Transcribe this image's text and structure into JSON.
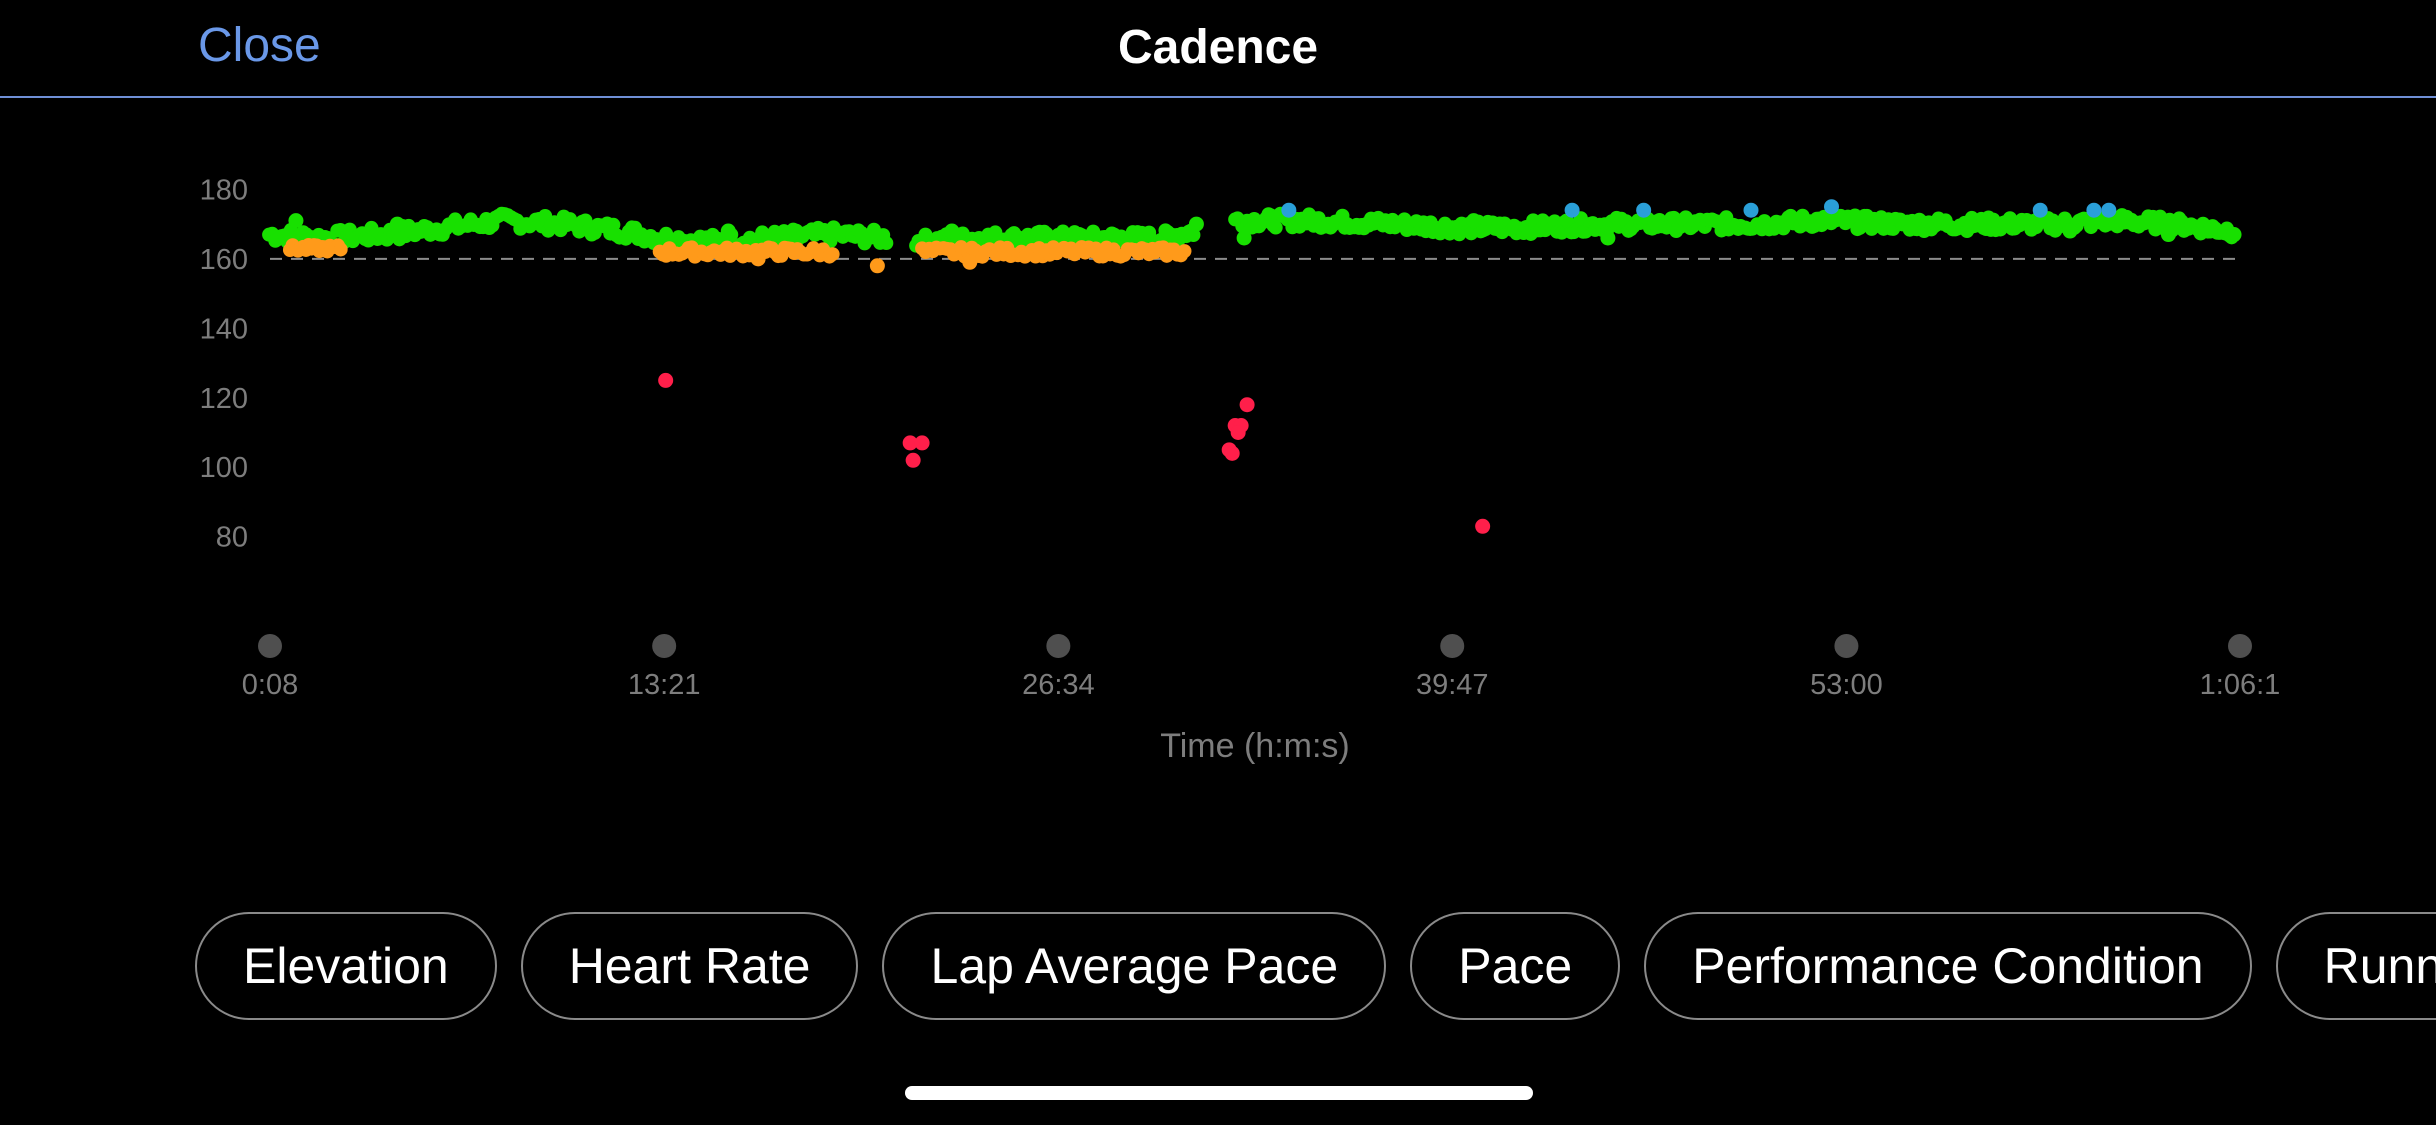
{
  "nav": {
    "close_label": "Close",
    "title": "Cadence"
  },
  "filters": [
    "Elevation",
    "Heart Rate",
    "Lap Average Pace",
    "Pace",
    "Performance Condition",
    "Running Dynamics"
  ],
  "colors": {
    "background": "#000000",
    "accent": "#6a98e8",
    "zone_purple": "#2a9fd8",
    "zone_green": "#18e000",
    "zone_orange": "#ff9a1a",
    "zone_red": "#ff1f4a",
    "axis_text": "#7d7d7d"
  },
  "chart_data": {
    "type": "scatter",
    "title": "",
    "xlabel": "Time (h:m:s)",
    "ylabel": "",
    "x_unit": "minutes",
    "xlim": [
      0.13,
      66.2
    ],
    "ylim": [
      73,
      185
    ],
    "y_ticks": [
      180,
      160,
      140,
      120,
      100,
      80
    ],
    "x_tick_labels": [
      "0:08",
      "13:21",
      "26:34",
      "39:47",
      "53:00",
      "1:06:1"
    ],
    "x_tick_values": [
      0.13,
      13.35,
      26.57,
      39.78,
      53.0,
      66.2
    ],
    "reference_line": 160,
    "grid": false,
    "series": [
      {
        "color": "#18e000",
        "segments": [
          {
            "x": [
              0.1,
              2.0,
              4.0,
              6.0,
              8.0,
              10.0,
              12.0,
              13.3,
              15.0,
              17.0,
              19.0,
              20.8
            ],
            "y": [
              167,
              166,
              167,
              169,
              171,
              170,
              168,
              166,
              165,
              166,
              167,
              166
            ],
            "n": 200,
            "jitter": 2.2
          },
          {
            "x": [
              21.8,
              24.0,
              26.0,
              28.0,
              30.0,
              31.1
            ],
            "y": [
              165,
              166,
              166,
              166,
              166,
              168
            ],
            "n": 120,
            "jitter": 2.0
          },
          {
            "x": [
              32.5,
              35.0,
              38.0,
              40.0,
              42.0,
              45.0,
              48.0,
              50.0,
              52.0,
              55.0,
              58.0,
              60.0,
              62.0,
              64.0,
              66.0
            ],
            "y": [
              171,
              171,
              170,
              169,
              169,
              170,
              170,
              170,
              171,
              170,
              170,
              170,
              171,
              170,
              168
            ],
            "n": 420,
            "jitter": 2.0
          }
        ],
        "points": [
          [
            32.8,
            166
          ],
          [
            1.0,
            171
          ],
          [
            4.4,
            170
          ],
          [
            15.5,
            168
          ],
          [
            23.0,
            168
          ],
          [
            31.2,
            170
          ],
          [
            40.5,
            171
          ],
          [
            45.0,
            166
          ],
          [
            60.5,
            168
          ],
          [
            63.8,
            167
          ],
          [
            65.2,
            168
          ],
          [
            66.0,
            167
          ]
        ]
      },
      {
        "color": "#ff9a1a",
        "segments": [
          {
            "x": [
              0.8,
              2.5
            ],
            "y": [
              163,
              163
            ],
            "n": 20,
            "jitter": 1.0
          },
          {
            "x": [
              13.2,
              15.0,
              17.0,
              19.0
            ],
            "y": [
              162,
              162,
              162,
              162
            ],
            "n": 55,
            "jitter": 1.4
          },
          {
            "x": [
              22.0,
              24.0,
              26.0,
              28.0,
              30.0,
              30.8
            ],
            "y": [
              162,
              162,
              162,
              162,
              162,
              162
            ],
            "n": 75,
            "jitter": 1.4
          }
        ],
        "points": [
          [
            20.5,
            158
          ],
          [
            23.6,
            159
          ],
          [
            16.5,
            160
          ],
          [
            29.8,
            162
          ]
        ]
      },
      {
        "color": "#2a9fd8",
        "segments": [],
        "points": [
          [
            34.3,
            174
          ],
          [
            43.8,
            174
          ],
          [
            46.2,
            174
          ],
          [
            49.8,
            174
          ],
          [
            52.5,
            175
          ],
          [
            59.5,
            174
          ],
          [
            61.3,
            174
          ],
          [
            61.8,
            174
          ]
        ]
      },
      {
        "color": "#ff1f4a",
        "segments": [],
        "points": [
          [
            13.4,
            125
          ],
          [
            21.6,
            107
          ],
          [
            22.0,
            107
          ],
          [
            21.7,
            102
          ],
          [
            32.3,
            105
          ],
          [
            32.4,
            104
          ],
          [
            32.5,
            112
          ],
          [
            32.7,
            112
          ],
          [
            32.6,
            110
          ],
          [
            32.9,
            118
          ],
          [
            40.8,
            83
          ]
        ]
      }
    ]
  }
}
